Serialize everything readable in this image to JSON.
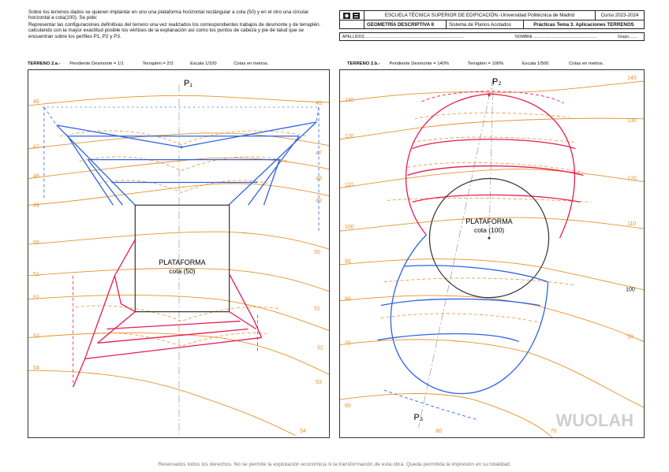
{
  "intro": {
    "line1": "Sobre los terrenos dados se quieren implantar en uno una plataforma horizontal rectángular a cota (50) y en el otro una circular horizontal a cota(100). Se pide:",
    "line2": "Representar las configuraciones definitivas del terreno una vez realizados los correspondientes trabajos de desmonte y de terraplén. calculando con la mayor exactitud posible los vértices de la explanación así como los puntos de cabeza y pie de talud que se encuentran sobre los perfiles P1, P2 y P3."
  },
  "header": {
    "school": "ESCUELA TÉCNICA SUPERIOR DE EDIFICACIÓN.-Universidad Politécnica de Madrid",
    "course": "Curso 2023-2024",
    "subject": "GEOMETRÍA DESCRIPTIVA II",
    "system": "Sistema de Planos Acotados",
    "practice": "Prácticas Tema 3. Aplicaciones TERRENOS",
    "apellidos": "APELLIDOS ..........................................................................................",
    "nombre": "NOMBRE ..........................................................",
    "grupo": "Grupo........"
  },
  "terreno_a": {
    "title": "TERRENO 2.a.-",
    "desmonte": "Pendiente Desmonte = 1/1",
    "terraplen": "Terraplén = 2/3",
    "escala": "Escala 1/100",
    "cotas": "Cotas en metros.",
    "profile": "P₁",
    "platform": "PLATAFORMA",
    "platform_level": "cota (50)",
    "left_labels": [
      "46",
      "47",
      "48",
      "49",
      "50",
      "51",
      "52",
      "53",
      "54"
    ],
    "right_labels": [
      "45",
      "47",
      "48",
      "49",
      "50",
      "51",
      "52",
      "53",
      "54"
    ]
  },
  "terreno_b": {
    "title": "TERRENO 2.b.-",
    "desmonte": "Pendiente Desmonte = 140%",
    "terraplen": "Terraplén = 100%",
    "escala": "Escala 1/500",
    "cotas": "Cotas en metros.",
    "profile_top": "P₂",
    "profile_bottom": "P₃",
    "platform": "PLATAFORMA",
    "platform_level": "cota (100)",
    "left_labels": [
      "130",
      "120",
      "110",
      "100",
      "90",
      "80",
      "70",
      "60"
    ],
    "right_labels": [
      "140",
      "130",
      "120",
      "110",
      "100",
      "90",
      "80",
      "70"
    ]
  },
  "watermark": "WUOLAH",
  "footer": "Reservados todos los derechos. No se permite la explotación económica ni la transformación de esta obra. Queda permitida la impresión en su totalidad.",
  "colors": {
    "contour": "#e8912a",
    "desmonte": "#2f62e6",
    "terraplen": "#e41b55",
    "platform": "#333333"
  }
}
